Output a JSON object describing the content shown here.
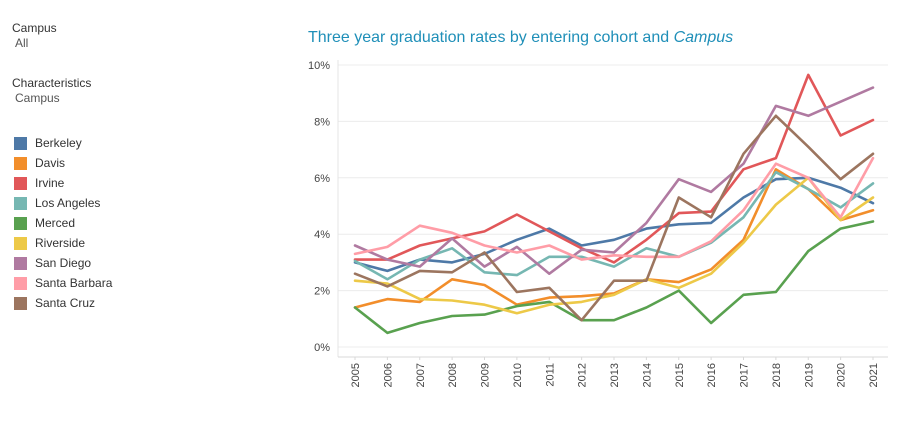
{
  "filters": {
    "campus_title": "Campus",
    "campus_value": "All",
    "characteristics_title": "Characteristics",
    "characteristics_value": "Campus"
  },
  "chart_data": {
    "type": "line",
    "title": "Three year graduation rates by entering cohort and",
    "title_italic": "Campus",
    "xlabel": "",
    "ylabel": "",
    "ylim": [
      0,
      10
    ],
    "y_ticks": [
      "0%",
      "2%",
      "4%",
      "6%",
      "8%",
      "10%"
    ],
    "categories": [
      "2005",
      "2006",
      "2007",
      "2008",
      "2009",
      "2010",
      "2011",
      "2012",
      "2013",
      "2014",
      "2015",
      "2016",
      "2017",
      "2018",
      "2019",
      "2020",
      "2021"
    ],
    "series": [
      {
        "name": "Berkeley",
        "color": "#4e79a7",
        "values": [
          3.0,
          2.7,
          3.1,
          3.0,
          3.3,
          3.8,
          4.2,
          3.6,
          3.8,
          4.2,
          4.35,
          4.4,
          5.3,
          5.95,
          6.0,
          5.65,
          5.1
        ]
      },
      {
        "name": "Davis",
        "color": "#f28e2b",
        "values": [
          1.4,
          1.7,
          1.6,
          2.4,
          2.2,
          1.5,
          1.75,
          1.8,
          1.9,
          2.4,
          2.3,
          2.75,
          3.8,
          6.3,
          5.6,
          4.5,
          4.85
        ]
      },
      {
        "name": "Irvine",
        "color": "#e15759",
        "values": [
          3.1,
          3.1,
          3.6,
          3.85,
          4.1,
          4.7,
          4.1,
          3.5,
          3.0,
          3.8,
          4.75,
          4.8,
          6.3,
          6.7,
          9.65,
          7.5,
          8.05
        ]
      },
      {
        "name": "Los Angeles",
        "color": "#76b7b2",
        "values": [
          3.05,
          2.4,
          3.1,
          3.5,
          2.65,
          2.55,
          3.2,
          3.2,
          2.85,
          3.5,
          3.2,
          3.7,
          4.6,
          6.2,
          5.6,
          4.95,
          5.8
        ]
      },
      {
        "name": "Merced",
        "color": "#59a14f",
        "values": [
          1.4,
          0.5,
          0.85,
          1.1,
          1.15,
          1.45,
          1.6,
          0.95,
          0.95,
          1.4,
          2.0,
          0.85,
          1.85,
          1.95,
          3.4,
          4.2,
          4.45
        ]
      },
      {
        "name": "Riverside",
        "color": "#edc948",
        "values": [
          2.35,
          2.25,
          1.7,
          1.65,
          1.5,
          1.2,
          1.5,
          1.6,
          1.85,
          2.4,
          2.1,
          2.6,
          3.7,
          5.05,
          6.0,
          4.5,
          5.3
        ]
      },
      {
        "name": "San Diego",
        "color": "#b07aa1",
        "values": [
          3.6,
          3.1,
          2.85,
          3.85,
          2.85,
          3.55,
          2.6,
          3.45,
          3.35,
          4.4,
          5.95,
          5.5,
          6.5,
          8.55,
          8.2,
          8.7,
          9.2
        ]
      },
      {
        "name": "Santa Barbara",
        "color": "#ff9da7",
        "values": [
          3.3,
          3.55,
          4.3,
          4.05,
          3.6,
          3.35,
          3.6,
          3.1,
          3.25,
          3.2,
          3.2,
          3.75,
          4.85,
          6.5,
          6.0,
          4.6,
          6.7
        ]
      },
      {
        "name": "Santa Cruz",
        "color": "#9c755f",
        "values": [
          2.6,
          2.15,
          2.7,
          2.65,
          3.35,
          1.95,
          2.1,
          0.95,
          2.35,
          2.35,
          5.3,
          4.6,
          6.85,
          8.2,
          7.1,
          5.95,
          6.85
        ]
      }
    ]
  }
}
